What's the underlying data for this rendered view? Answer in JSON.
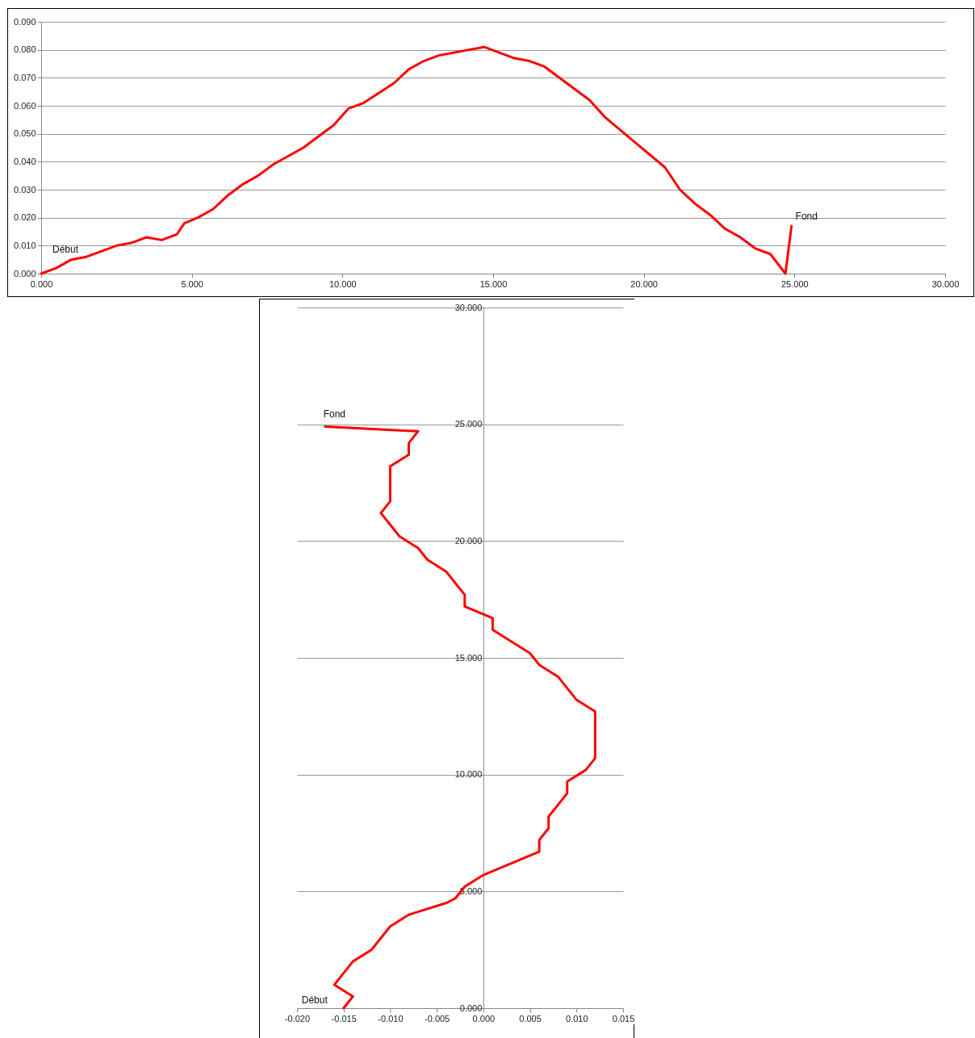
{
  "chart_data": [
    {
      "type": "line",
      "x": [
        0,
        0.5,
        1.0,
        1.5,
        2.5,
        3.0,
        3.5,
        4.0,
        4.5,
        4.75,
        5.2,
        5.7,
        6.2,
        6.7,
        7.2,
        7.7,
        8.7,
        9.7,
        10.2,
        10.7,
        11.7,
        12.2,
        12.7,
        13.2,
        14.7,
        15.7,
        16.2,
        16.7,
        18.2,
        18.7,
        19.7,
        20.7,
        21.2,
        21.7,
        22.2,
        22.7,
        23.2,
        23.7,
        24.2,
        24.7,
        24.9
      ],
      "series": [
        {
          "color": "#ff0000",
          "values": [
            0,
            0.002,
            0.005,
            0.006,
            0.01,
            0.011,
            0.013,
            0.012,
            0.014,
            0.018,
            0.02,
            0.023,
            0.028,
            0.032,
            0.035,
            0.039,
            0.045,
            0.053,
            0.059,
            0.061,
            0.068,
            0.073,
            0.076,
            0.078,
            0.081,
            0.077,
            0.076,
            0.074,
            0.062,
            0.056,
            0.047,
            0.038,
            0.03,
            0.025,
            0.021,
            0.016,
            0.013,
            0.009,
            0.007,
            0.0,
            0.017
          ]
        }
      ],
      "xlim": [
        0,
        30
      ],
      "xticks": [
        {
          "value": 0,
          "label": "0.000"
        },
        {
          "value": 5,
          "label": "5.000"
        },
        {
          "value": 10,
          "label": "10.000"
        },
        {
          "value": 15,
          "label": "15.000"
        },
        {
          "value": 20,
          "label": "20.000"
        },
        {
          "value": 25,
          "label": "25.000"
        },
        {
          "value": 30,
          "label": "30.000"
        }
      ],
      "ylim": [
        0,
        0.09
      ],
      "yticks": [
        {
          "value": 0,
          "label": "0.000"
        },
        {
          "value": 0.01,
          "label": "0.010"
        },
        {
          "value": 0.02,
          "label": "0.020"
        },
        {
          "value": 0.03,
          "label": "0.030"
        },
        {
          "value": 0.04,
          "label": "0.040"
        },
        {
          "value": 0.05,
          "label": "0.050"
        },
        {
          "value": 0.06,
          "label": "0.060"
        },
        {
          "value": 0.07,
          "label": "0.070"
        },
        {
          "value": 0.08,
          "label": "0.080"
        },
        {
          "value": 0.09,
          "label": "0.090"
        }
      ],
      "grid": "y",
      "annotations": [
        {
          "text": "Début",
          "x": 0,
          "y": 0
        },
        {
          "text": "Fond",
          "x": 24.9,
          "y": 0.017
        }
      ]
    },
    {
      "type": "line",
      "x": [
        -0.015,
        -0.014,
        -0.016,
        -0.014,
        -0.012,
        -0.01,
        -0.008,
        -0.004,
        -0.003,
        -0.002,
        0,
        0.006,
        0.006,
        0.007,
        0.007,
        0.009,
        0.009,
        0.011,
        0.012,
        0.012,
        0.01,
        0.008,
        0.006,
        0.005,
        0.001,
        0.001,
        -0.002,
        -0.002,
        -0.004,
        -0.006,
        -0.007,
        -0.009,
        -0.011,
        -0.01,
        -0.01,
        -0.008,
        -0.008,
        -0.007,
        -0.017
      ],
      "series": [
        {
          "color": "#ff0000",
          "values": [
            0,
            0.5,
            1.0,
            2.0,
            2.5,
            3.5,
            4.0,
            4.5,
            4.7,
            5.2,
            5.7,
            6.7,
            7.2,
            7.7,
            8.2,
            9.2,
            9.7,
            10.2,
            10.7,
            12.7,
            13.2,
            14.2,
            14.7,
            15.2,
            16.2,
            16.7,
            17.2,
            17.7,
            18.7,
            19.2,
            19.7,
            20.2,
            21.2,
            21.7,
            23.2,
            23.7,
            24.2,
            24.7,
            24.9
          ]
        }
      ],
      "xlim": [
        -0.02,
        0.015
      ],
      "xticks": [
        {
          "value": -0.02,
          "label": "-0.020"
        },
        {
          "value": -0.015,
          "label": "-0.015"
        },
        {
          "value": -0.01,
          "label": "-0.010"
        },
        {
          "value": -0.005,
          "label": "-0.005"
        },
        {
          "value": 0,
          "label": "0.000"
        },
        {
          "value": 0.005,
          "label": "0.005"
        },
        {
          "value": 0.01,
          "label": "0.010"
        },
        {
          "value": 0.015,
          "label": "0.015"
        }
      ],
      "ylim": [
        0,
        30
      ],
      "yticks": [
        {
          "value": 0,
          "label": "0.000"
        },
        {
          "value": 5,
          "label": "5.000"
        },
        {
          "value": 10,
          "label": "10.000"
        },
        {
          "value": 15,
          "label": "15.000"
        },
        {
          "value": 20,
          "label": "20.000"
        },
        {
          "value": 25,
          "label": "25.000"
        },
        {
          "value": 30,
          "label": "30.000"
        }
      ],
      "grid": "y",
      "annotations": [
        {
          "text": "Début",
          "x": -0.015,
          "y": 0
        },
        {
          "text": "Fond",
          "x": -0.017,
          "y": 24.9
        }
      ]
    }
  ]
}
